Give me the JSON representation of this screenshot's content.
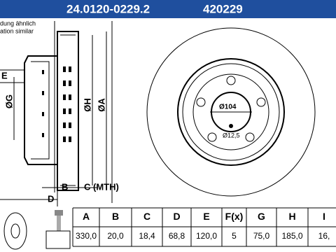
{
  "header": {
    "part_number": "24.0120-0229.2",
    "ref_number": "420229"
  },
  "notes": [
    "dung ähnlich",
    "ation similar"
  ],
  "drawing": {
    "labels": {
      "e": "E",
      "g": "ØG",
      "h": "ØH",
      "a": "ØA",
      "b": "B",
      "c": "C (MTH)",
      "d": "D",
      "center_bore": "Ø104",
      "bolt_hole": "Ø12,5"
    }
  },
  "table": {
    "headers": [
      "A",
      "B",
      "C",
      "D",
      "E",
      "F(x)",
      "G",
      "H",
      "I"
    ],
    "values": [
      "330,0",
      "20,0",
      "18,4",
      "68,8",
      "120,0",
      "5",
      "75,0",
      "185,0",
      "16,"
    ]
  }
}
